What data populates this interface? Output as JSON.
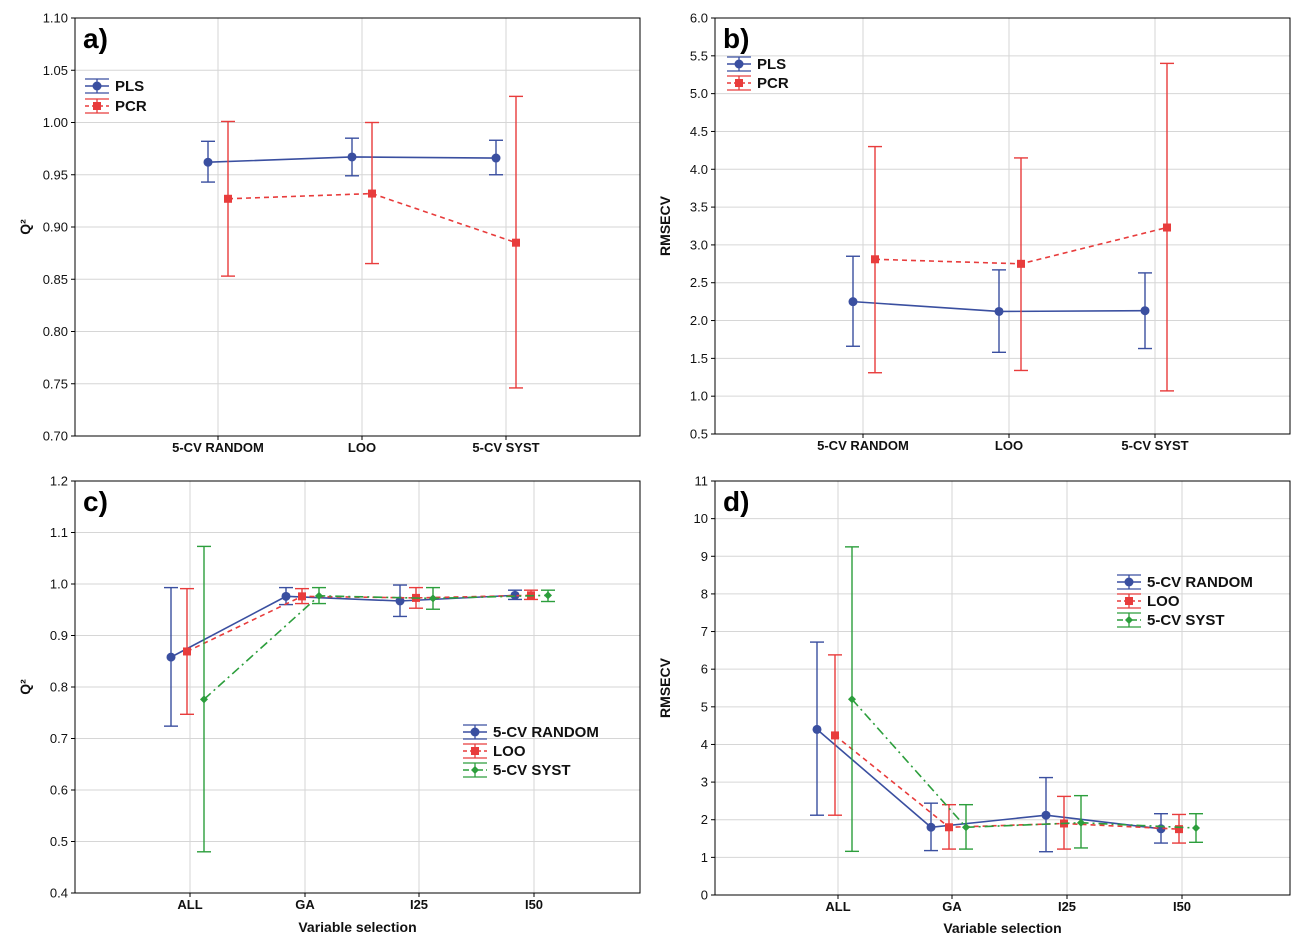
{
  "chart_data": [
    {
      "type": "line",
      "panel_label": "a)",
      "categories": [
        "5-CV RANDOM",
        "LOO",
        "5-CV SYST"
      ],
      "ylabel": "Q²",
      "xlabel": "",
      "ylim": [
        0.7,
        1.1
      ],
      "yticks": [
        0.7,
        0.75,
        0.8,
        0.85,
        0.9,
        0.95,
        1.0,
        1.05,
        1.1
      ],
      "tick_decimals": 2,
      "grid": true,
      "legend_position": "top-left",
      "series": [
        {
          "name": "PLS",
          "color": "#3a4fa0",
          "dash": "",
          "marker": "circle",
          "values": [
            0.962,
            0.967,
            0.966
          ],
          "lower": [
            0.943,
            0.949,
            0.95
          ],
          "upper": [
            0.982,
            0.985,
            0.983
          ]
        },
        {
          "name": "PCR",
          "color": "#e83c3c",
          "dash": "5,4",
          "marker": "square",
          "values": [
            0.927,
            0.932,
            0.885
          ],
          "lower": [
            0.853,
            0.865,
            0.746
          ],
          "upper": [
            1.001,
            1.0,
            1.025
          ]
        }
      ]
    },
    {
      "type": "line",
      "panel_label": "b)",
      "categories": [
        "5-CV RANDOM",
        "LOO",
        "5-CV SYST"
      ],
      "ylabel": "RMSECV",
      "xlabel": "",
      "ylim": [
        0.5,
        6.0
      ],
      "yticks": [
        0.5,
        1.0,
        1.5,
        2.0,
        2.5,
        3.0,
        3.5,
        4.0,
        4.5,
        5.0,
        5.5,
        6.0
      ],
      "tick_decimals": 1,
      "grid": true,
      "legend_position": "top-left",
      "series": [
        {
          "name": "PLS",
          "color": "#3a4fa0",
          "dash": "",
          "marker": "circle",
          "values": [
            2.25,
            2.12,
            2.13
          ],
          "lower": [
            1.66,
            1.58,
            1.63
          ],
          "upper": [
            2.85,
            2.67,
            2.63
          ]
        },
        {
          "name": "PCR",
          "color": "#e83c3c",
          "dash": "5,4",
          "marker": "square",
          "values": [
            2.81,
            2.75,
            3.23
          ],
          "lower": [
            1.31,
            1.34,
            1.07
          ],
          "upper": [
            4.3,
            4.15,
            5.4
          ]
        }
      ]
    },
    {
      "type": "line",
      "panel_label": "c)",
      "categories": [
        "ALL",
        "GA",
        "I25",
        "I50"
      ],
      "ylabel": "Q²",
      "xlabel": "Variable selection",
      "ylim": [
        0.4,
        1.2
      ],
      "yticks": [
        0.4,
        0.5,
        0.6,
        0.7,
        0.8,
        0.9,
        1.0,
        1.1,
        1.2
      ],
      "tick_decimals": 1,
      "grid": true,
      "legend_position": "center-right",
      "series": [
        {
          "name": "5-CV RANDOM",
          "color": "#3a4fa0",
          "dash": "",
          "marker": "circle",
          "values": [
            0.858,
            0.976,
            0.967,
            0.978
          ],
          "lower": [
            0.724,
            0.96,
            0.937,
            0.97
          ],
          "upper": [
            0.993,
            0.993,
            0.998,
            0.988
          ]
        },
        {
          "name": "LOO",
          "color": "#e83c3c",
          "dash": "5,4",
          "marker": "square",
          "values": [
            0.869,
            0.976,
            0.973,
            0.978
          ],
          "lower": [
            0.747,
            0.962,
            0.953,
            0.97
          ],
          "upper": [
            0.991,
            0.991,
            0.993,
            0.988
          ]
        },
        {
          "name": "5-CV SYST",
          "color": "#2c9e3c",
          "dash": "9,4,2,4",
          "marker": "diamond",
          "values": [
            0.776,
            0.977,
            0.972,
            0.978
          ],
          "lower": [
            0.48,
            0.962,
            0.951,
            0.966
          ],
          "upper": [
            1.073,
            0.993,
            0.993,
            0.988
          ]
        }
      ]
    },
    {
      "type": "line",
      "panel_label": "d)",
      "categories": [
        "ALL",
        "GA",
        "I25",
        "I50"
      ],
      "ylabel": "RMSECV",
      "xlabel": "Variable selection",
      "ylim": [
        0,
        11
      ],
      "yticks": [
        0,
        1,
        2,
        3,
        4,
        5,
        6,
        7,
        8,
        9,
        10,
        11
      ],
      "tick_decimals": 0,
      "grid": true,
      "legend_position": "top-right",
      "series": [
        {
          "name": "5-CV RANDOM",
          "color": "#3a4fa0",
          "dash": "",
          "marker": "circle",
          "values": [
            4.4,
            1.8,
            2.12,
            1.76
          ],
          "lower": [
            2.12,
            1.18,
            1.15,
            1.38
          ],
          "upper": [
            6.72,
            2.44,
            3.12,
            2.16
          ]
        },
        {
          "name": "LOO",
          "color": "#e83c3c",
          "dash": "5,4",
          "marker": "square",
          "values": [
            4.24,
            1.8,
            1.9,
            1.75
          ],
          "lower": [
            2.12,
            1.22,
            1.22,
            1.38
          ],
          "upper": [
            6.38,
            2.4,
            2.62,
            2.14
          ]
        },
        {
          "name": "5-CV SYST",
          "color": "#2c9e3c",
          "dash": "9,4,2,4",
          "marker": "diamond",
          "values": [
            5.2,
            1.8,
            1.92,
            1.78
          ],
          "lower": [
            1.16,
            1.22,
            1.25,
            1.4
          ],
          "upper": [
            9.25,
            2.4,
            2.64,
            2.16
          ]
        }
      ]
    }
  ]
}
